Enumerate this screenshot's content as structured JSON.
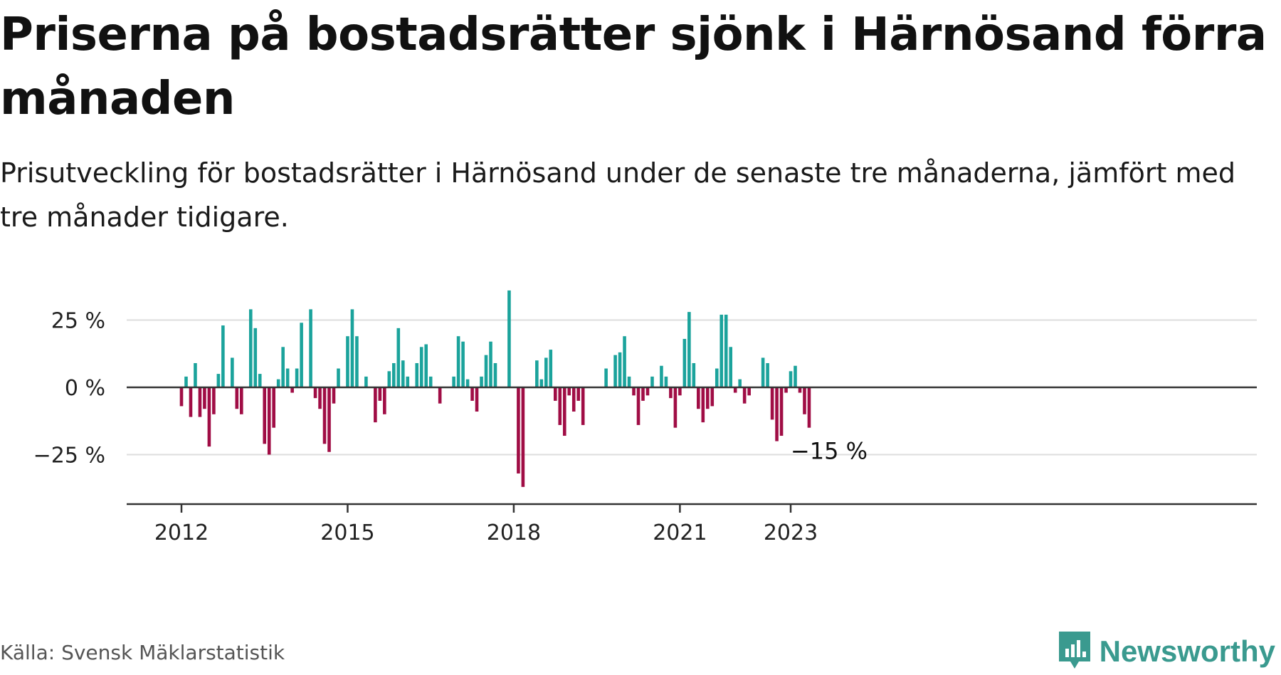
{
  "title": "Priserna på bostadsrätter sjönk i Härnösand förra månaden",
  "subtitle": "Prisutveckling för bostadsrätter i Härnösand under de senaste tre månaderna, jämfört med tre månader tidigare.",
  "source": "Källa: Svensk Mäklarstatistik",
  "brand": {
    "name": "Newsworthy",
    "icon": "newsworthy-logo-icon"
  },
  "colors": {
    "positive": "#1ba39c",
    "negative": "#a00d45",
    "axis": "#333333",
    "grid": "#dddddd"
  },
  "chart_data": {
    "type": "bar",
    "x_start": "2012-01",
    "x_end": "2023-01",
    "ylim": [
      -42,
      36
    ],
    "y_ticks": [
      {
        "value": 25,
        "label": "25 %"
      },
      {
        "value": 0,
        "label": "0 %"
      },
      {
        "value": -25,
        "label": "−25 %"
      }
    ],
    "x_ticks": [
      {
        "date": "2012-01",
        "label": "2012"
      },
      {
        "date": "2015-01",
        "label": "2015"
      },
      {
        "date": "2018-01",
        "label": "2018"
      },
      {
        "date": "2021-01",
        "label": "2021"
      },
      {
        "date": "2023-01",
        "label": "2023"
      }
    ],
    "end_label": "−15 %",
    "grid": true,
    "values": [
      -7,
      4,
      -11,
      9,
      -11,
      -8,
      -22,
      -10,
      5,
      23,
      0,
      11,
      -8,
      -10,
      0,
      29,
      22,
      5,
      -21,
      -25,
      -15,
      3,
      15,
      7,
      -2,
      7,
      24,
      0,
      29,
      -4,
      -8,
      -21,
      -24,
      -6,
      7,
      0,
      19,
      29,
      19,
      0,
      4,
      0,
      -13,
      -5,
      -10,
      6,
      9,
      22,
      10,
      4,
      0,
      9,
      15,
      16,
      4,
      0,
      -6,
      0,
      0,
      4,
      19,
      17,
      3,
      -5,
      -9,
      4,
      12,
      17,
      9,
      0,
      0,
      36,
      0,
      -32,
      -37,
      0,
      0,
      10,
      3,
      11,
      14,
      -5,
      -14,
      -18,
      -3,
      -9,
      -5,
      -14,
      0,
      0,
      0,
      0,
      7,
      0,
      12,
      13,
      19,
      4,
      -3,
      -14,
      -5,
      -3,
      4,
      0,
      8,
      4,
      -4,
      -15,
      -3,
      18,
      28,
      9,
      -8,
      -13,
      -8,
      -7,
      7,
      27,
      27,
      15,
      -2,
      3,
      -6,
      -3,
      0,
      0,
      11,
      9,
      -12,
      -20,
      -18,
      -2,
      6,
      8,
      -2,
      -10,
      -15
    ]
  }
}
